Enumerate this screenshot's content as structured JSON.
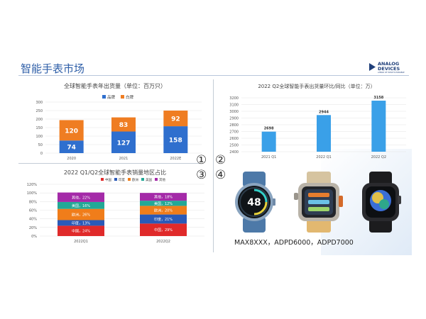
{
  "slide": {
    "title": "智能手表市场",
    "logo_text": "ANALOG\nDEVICES",
    "logo_tagline": "AHEAD OF WHAT'S POSSIBLE",
    "markers": [
      "①",
      "②",
      "③",
      "④"
    ],
    "caption": "MAX8XXX，ADPD6000，ADPD7000"
  },
  "colors": {
    "title_blue": "#2f5fa8",
    "brand": "#2456b8",
    "white_label": "#ef7d22",
    "bar_blue": "#2f6fce",
    "bar_blue_light": "#3aa0e8",
    "china": "#e02a2a",
    "india": "#2a5ab8",
    "europe": "#f07d1a",
    "usa": "#23a896",
    "other": "#a42aa8"
  },
  "watches": [
    {
      "name": "round-blue-watch-icon",
      "dial_text": "48"
    },
    {
      "name": "rugged-square-watch-icon",
      "dial_text": ""
    },
    {
      "name": "square-black-watch-icon",
      "dial_text": ""
    }
  ],
  "chart_data": [
    {
      "type": "bar",
      "stacked": true,
      "title": "全球智能手表年出货量（单位：百万只）",
      "categories": [
        "2020",
        "2021",
        "2022E"
      ],
      "series": [
        {
          "name": "品牌",
          "values": [
            74,
            127,
            158
          ],
          "color": "#2f6fce"
        },
        {
          "name": "白牌",
          "values": [
            120,
            83,
            92
          ],
          "color": "#ef7d22"
        }
      ],
      "ylim": [
        0,
        300
      ],
      "yticks": [
        0,
        50,
        100,
        150,
        200,
        250,
        300
      ],
      "legend": "top",
      "grid": true
    },
    {
      "type": "bar",
      "title": "2022 Q2全球智能手表出货量环比/同比（单位：万）",
      "categories": [
        "2021 Q1",
        "2022 Q1",
        "2022 Q2"
      ],
      "values": [
        2698,
        2944,
        3158
      ],
      "color": "#3aa0e8",
      "ylim": [
        2400,
        3200
      ],
      "yticks": [
        2400,
        2500,
        2600,
        2700,
        2800,
        2900,
        3000,
        3100,
        3200
      ],
      "grid": true
    },
    {
      "type": "bar",
      "stacked": true,
      "percent": true,
      "title": "2022 Q1/Q2全球智能手表销量地区占比",
      "categories": [
        "2022Q1",
        "2022Q2"
      ],
      "series": [
        {
          "name": "中国",
          "values": [
            24,
            29
          ],
          "labels": [
            "中国，24%",
            "中国，29%"
          ],
          "color": "#e02a2a"
        },
        {
          "name": "印度",
          "values": [
            13,
            21
          ],
          "labels": [
            "印度，13%",
            "印度，21%"
          ],
          "color": "#2a5ab8"
        },
        {
          "name": "欧洲",
          "values": [
            26,
            20
          ],
          "labels": [
            "欧洲，26%",
            "欧洲，20%"
          ],
          "color": "#f07d1a"
        },
        {
          "name": "美国",
          "values": [
            16,
            12
          ],
          "labels": [
            "美国，16%",
            "美国，12%"
          ],
          "color": "#23a896"
        },
        {
          "name": "其他",
          "values": [
            22,
            18
          ],
          "labels": [
            "其他，22%",
            "其他，18%"
          ],
          "color": "#a42aa8"
        }
      ],
      "ylim": [
        0,
        120
      ],
      "yticks": [
        "0%",
        "20%",
        "40%",
        "60%",
        "80%",
        "100%",
        "120%"
      ],
      "legend": "top",
      "grid": true
    }
  ]
}
